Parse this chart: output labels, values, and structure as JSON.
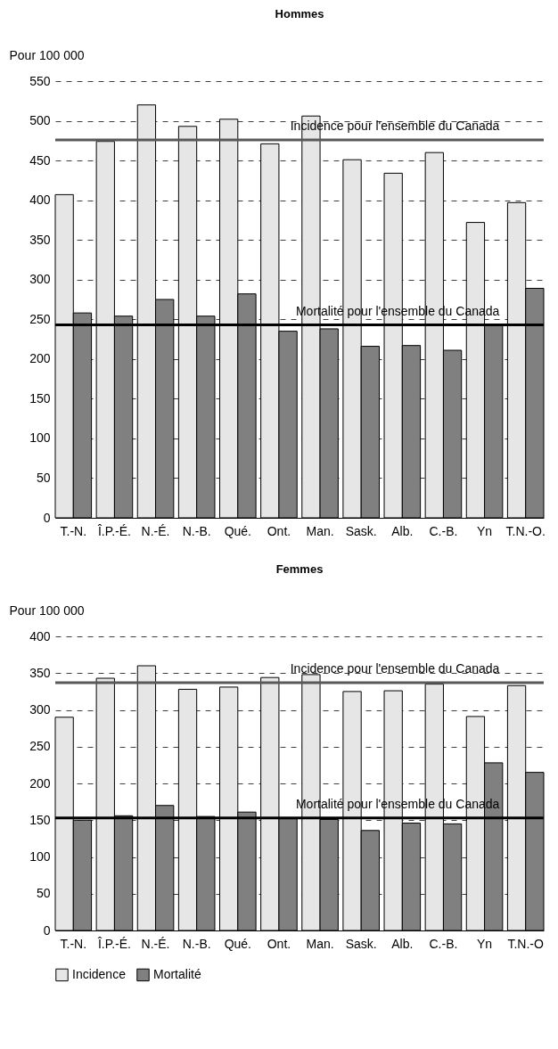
{
  "chart_data": [
    {
      "type": "bar",
      "title": "Hommes",
      "ylabel": "Pour 100 000",
      "categories": [
        "T.-N.",
        "Î.P.-É.",
        "N.-É.",
        "N.-B.",
        "Qué.",
        "Ont.",
        "Man.",
        "Sask.",
        "Alb.",
        "C.-B.",
        "Yn",
        "T.N.-O."
      ],
      "series": [
        {
          "name": "Incidence",
          "color": "#e6e6e6",
          "values": [
            407,
            474,
            520,
            493,
            502,
            471,
            506,
            451,
            434,
            460,
            372,
            397
          ]
        },
        {
          "name": "Mortalité",
          "color": "#808080",
          "values": [
            258,
            254,
            275,
            254,
            282,
            235,
            238,
            216,
            217,
            211,
            243,
            289
          ]
        }
      ],
      "ylim": [
        0,
        550
      ],
      "yticks": [
        0,
        50,
        100,
        150,
        200,
        250,
        300,
        350,
        400,
        450,
        500,
        550
      ],
      "grid": "y",
      "ref_lines": [
        {
          "axis": "y",
          "value": 476,
          "label": "Incidence pour l'ensemble du Canada",
          "color": "#595959"
        },
        {
          "axis": "y",
          "value": 243,
          "label": "Mortalité pour l'ensemble du Canada",
          "color": "#000000"
        }
      ]
    },
    {
      "type": "bar",
      "title": "Femmes",
      "ylabel": "Pour 100 000",
      "categories": [
        "T.-N.",
        "Î.P.-É.",
        "N.-É.",
        "N.-B.",
        "Qué.",
        "Ont.",
        "Man.",
        "Sask.",
        "Alb.",
        "C.-B.",
        "Yn",
        "T.N.-O"
      ],
      "series": [
        {
          "name": "Incidence",
          "color": "#e6e6e6",
          "values": [
            290,
            343,
            360,
            328,
            331,
            344,
            348,
            325,
            326,
            335,
            291,
            333
          ]
        },
        {
          "name": "Mortalité",
          "color": "#808080",
          "values": [
            150,
            156,
            170,
            155,
            161,
            152,
            151,
            136,
            146,
            145,
            228,
            215
          ]
        }
      ],
      "ylim": [
        0,
        400
      ],
      "yticks": [
        0,
        50,
        100,
        150,
        200,
        250,
        300,
        350,
        400
      ],
      "grid": "y",
      "legend": "bottom",
      "ref_lines": [
        {
          "axis": "y",
          "value": 337,
          "label": "Incidence pour l'ensemble du Canada",
          "color": "#595959"
        },
        {
          "axis": "y",
          "value": 153,
          "label": "Mortalité pour l'ensemble du Canada",
          "color": "#000000"
        }
      ]
    }
  ]
}
